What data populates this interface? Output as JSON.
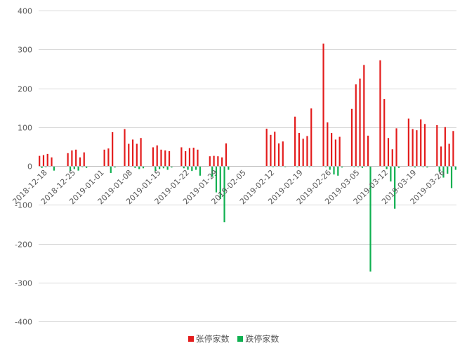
{
  "chart_data": {
    "type": "bar",
    "title": "",
    "xlabel": "",
    "ylabel": "",
    "ylim": [
      -400,
      400
    ],
    "yticks": [
      400,
      300,
      200,
      100,
      0,
      -100,
      -200,
      -300,
      -400
    ],
    "grid": true,
    "legend_position": "bottom",
    "x_tick_labels": [
      "2018-12-18",
      "2018-12-25",
      "2019-01-01",
      "2019-01-08",
      "2019-01-15",
      "2019-01-22",
      "2019-01-29",
      "2019-02-05",
      "2019-02-12",
      "2019-02-19",
      "2019-02-26",
      "2019-03-05",
      "2019-03-12",
      "2019-03-19",
      "2019-03-26"
    ],
    "categories": [
      "2018-12-17",
      "2018-12-18",
      "2018-12-19",
      "2018-12-20",
      "2018-12-21",
      "2018-12-22",
      "2018-12-23",
      "2018-12-24",
      "2018-12-25",
      "2018-12-26",
      "2018-12-27",
      "2018-12-28",
      "2018-12-29",
      "2018-12-30",
      "2018-12-31",
      "2019-01-01",
      "2019-01-02",
      "2019-01-03",
      "2019-01-04",
      "2019-01-05",
      "2019-01-06",
      "2019-01-07",
      "2019-01-08",
      "2019-01-09",
      "2019-01-10",
      "2019-01-11",
      "2019-01-12",
      "2019-01-13",
      "2019-01-14",
      "2019-01-15",
      "2019-01-16",
      "2019-01-17",
      "2019-01-18",
      "2019-01-19",
      "2019-01-20",
      "2019-01-21",
      "2019-01-22",
      "2019-01-23",
      "2019-01-24",
      "2019-01-25",
      "2019-01-26",
      "2019-01-27",
      "2019-01-28",
      "2019-01-29",
      "2019-01-30",
      "2019-01-31",
      "2019-02-01",
      "2019-02-02",
      "2019-02-03",
      "2019-02-04",
      "2019-02-05",
      "2019-02-06",
      "2019-02-07",
      "2019-02-08",
      "2019-02-09",
      "2019-02-10",
      "2019-02-11",
      "2019-02-12",
      "2019-02-13",
      "2019-02-14",
      "2019-02-15",
      "2019-02-16",
      "2019-02-17",
      "2019-02-18",
      "2019-02-19",
      "2019-02-20",
      "2019-02-21",
      "2019-02-22",
      "2019-02-23",
      "2019-02-24",
      "2019-02-25",
      "2019-02-26",
      "2019-02-27",
      "2019-02-28",
      "2019-03-01",
      "2019-03-02",
      "2019-03-03",
      "2019-03-04",
      "2019-03-05",
      "2019-03-06",
      "2019-03-07",
      "2019-03-08",
      "2019-03-09",
      "2019-03-10",
      "2019-03-11",
      "2019-03-12",
      "2019-03-13",
      "2019-03-14",
      "2019-03-15",
      "2019-03-16",
      "2019-03-17",
      "2019-03-18",
      "2019-03-19",
      "2019-03-20",
      "2019-03-21",
      "2019-03-22",
      "2019-03-23",
      "2019-03-24",
      "2019-03-25",
      "2019-03-26",
      "2019-03-27",
      "2019-03-28",
      "2019-03-29"
    ],
    "series": [
      {
        "name": "张停家数",
        "color": "#e31c1c",
        "values": [
          26,
          28,
          31,
          22,
          0,
          0,
          0,
          33,
          40,
          42,
          22,
          35,
          0,
          0,
          0,
          0,
          42,
          45,
          87,
          0,
          0,
          95,
          57,
          68,
          57,
          72,
          0,
          0,
          48,
          53,
          42,
          40,
          38,
          0,
          0,
          48,
          38,
          46,
          47,
          42,
          0,
          0,
          25,
          26,
          25,
          22,
          58,
          0,
          0,
          0,
          0,
          0,
          0,
          0,
          0,
          0,
          96,
          80,
          88,
          58,
          63,
          0,
          0,
          127,
          85,
          70,
          77,
          148,
          0,
          0,
          315,
          112,
          85,
          68,
          75,
          0,
          0,
          147,
          210,
          225,
          260,
          78,
          0,
          0,
          272,
          172,
          72,
          43,
          97,
          0,
          0,
          122,
          95,
          92,
          120,
          108,
          0,
          0,
          105,
          50,
          100,
          57,
          90
        ]
      },
      {
        "name": "跌停家数",
        "color": "#0fb050",
        "values": [
          -5,
          -3,
          -2,
          -12,
          0,
          0,
          0,
          -13,
          -8,
          -12,
          -3,
          -5,
          0,
          0,
          0,
          0,
          -2,
          -18,
          -4,
          0,
          0,
          0,
          -2,
          -5,
          -8,
          -6,
          0,
          0,
          -13,
          -8,
          -6,
          -10,
          -4,
          0,
          0,
          -6,
          -10,
          -13,
          -10,
          -25,
          0,
          0,
          -28,
          -68,
          -85,
          -145,
          -10,
          0,
          0,
          0,
          0,
          0,
          0,
          0,
          0,
          0,
          -2,
          -3,
          -2,
          -2,
          -3,
          0,
          0,
          -3,
          -2,
          -2,
          -3,
          -2,
          0,
          0,
          -3,
          -10,
          -22,
          -25,
          -4,
          0,
          0,
          -3,
          -3,
          -5,
          -2,
          -272,
          0,
          0,
          -2,
          -8,
          -40,
          -110,
          -5,
          0,
          0,
          -2,
          -4,
          -2,
          -3,
          -4,
          0,
          0,
          -15,
          -30,
          -20,
          -57,
          -10
        ]
      }
    ]
  }
}
